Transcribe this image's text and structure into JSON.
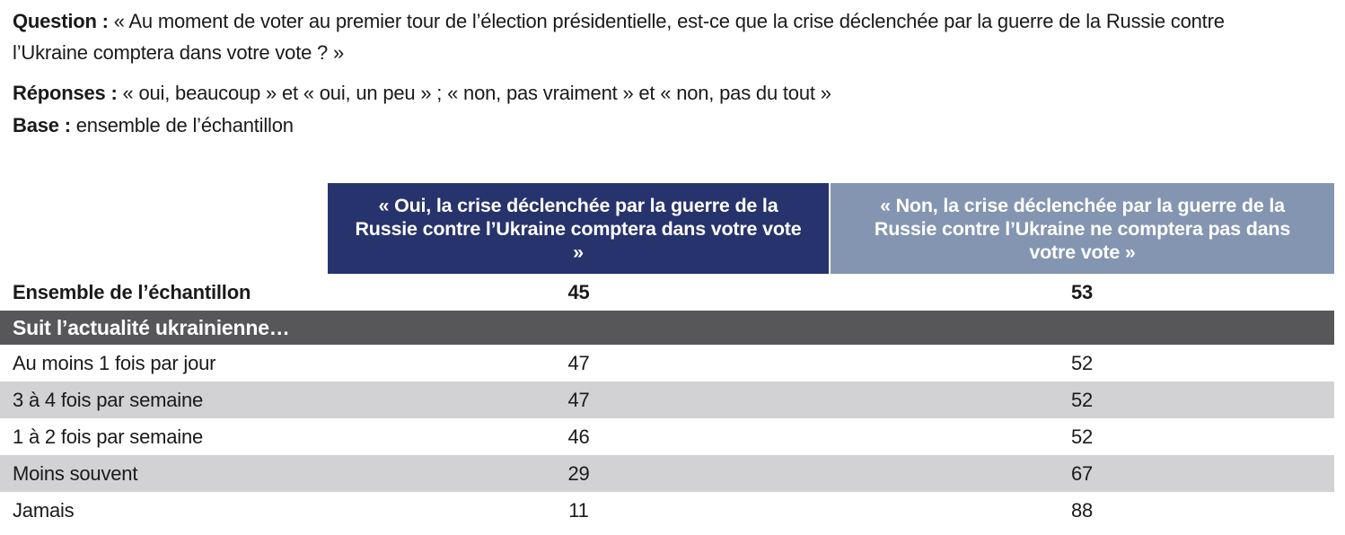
{
  "intro": {
    "question_label": "Question :",
    "question_text": " « Au moment de voter au premier tour de l’élection présidentielle, est-ce que la crise déclenchée par la guerre de la Russie contre l’Ukraine comptera dans votre vote ? »",
    "responses_label": "Réponses :",
    "responses_text": " « oui, beaucoup » et « oui, un peu » ; « non, pas vraiment » et « non, pas du tout »",
    "base_label": "Base :",
    "base_text": " ensemble de l’échantillon"
  },
  "table": {
    "column_headers": [
      {
        "id": "oui",
        "label": "« Oui, la crise déclenchée par la guerre de la Russie contre l’Ukraine comptera dans votre vote »",
        "color": "#27336c"
      },
      {
        "id": "non",
        "label": "« Non, la crise déclenchée par la guerre de la Russie contre l’Ukraine ne comptera pas dans votre vote »",
        "color": "#8495b2"
      }
    ],
    "total_row": {
      "label": "Ensemble de l’échantillon",
      "oui": "45",
      "non": "53"
    },
    "section_header": "Suit l’actualité ukrainienne…",
    "rows": [
      {
        "label": "Au moins 1 fois par jour",
        "oui": "47",
        "non": "52"
      },
      {
        "label": "3 à 4 fois par semaine",
        "oui": "47",
        "non": "52"
      },
      {
        "label": "1 à 2 fois par semaine",
        "oui": "46",
        "non": "52"
      },
      {
        "label": "Moins souvent",
        "oui": "29",
        "non": "67"
      },
      {
        "label": "Jamais",
        "oui": "11",
        "non": "88"
      }
    ],
    "colors": {
      "header_oui": "#27336c",
      "header_non": "#8495b2",
      "section_band": "#575659",
      "zebra_shade": "#d2d2d4",
      "text": "#1a1a1a"
    }
  }
}
